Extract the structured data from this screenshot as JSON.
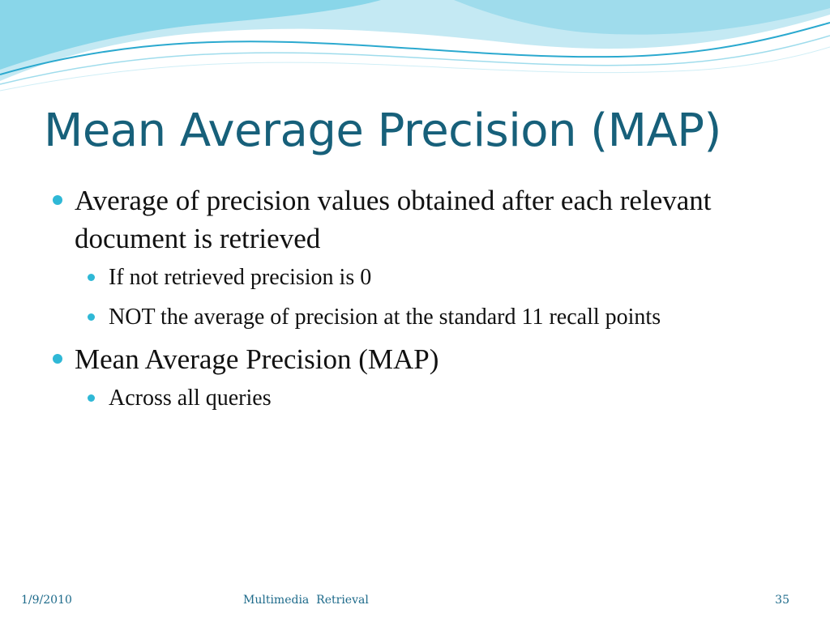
{
  "slide": {
    "title": "Mean Average Precision (MAP)",
    "bullets": [
      {
        "text": "Average of precision values obtained after each relevant document is retrieved",
        "sub": [
          "If not retrieved precision is 0",
          "NOT the average of precision at the standard 11 recall points"
        ]
      },
      {
        "text": "Mean Average Precision (MAP)",
        "sub": [
          "Across all queries"
        ]
      }
    ]
  },
  "footer": {
    "date": "1/9/2010",
    "center": "Multimedia  Retrieval",
    "slide_number": "35"
  },
  "colors": {
    "title": "#17607a",
    "bullet": "#2fb8d6",
    "footer": "#1d6a8a",
    "wave_light": "#bfe8f2",
    "wave_mid": "#6fcde3",
    "wave_dark": "#2ba9cf"
  }
}
